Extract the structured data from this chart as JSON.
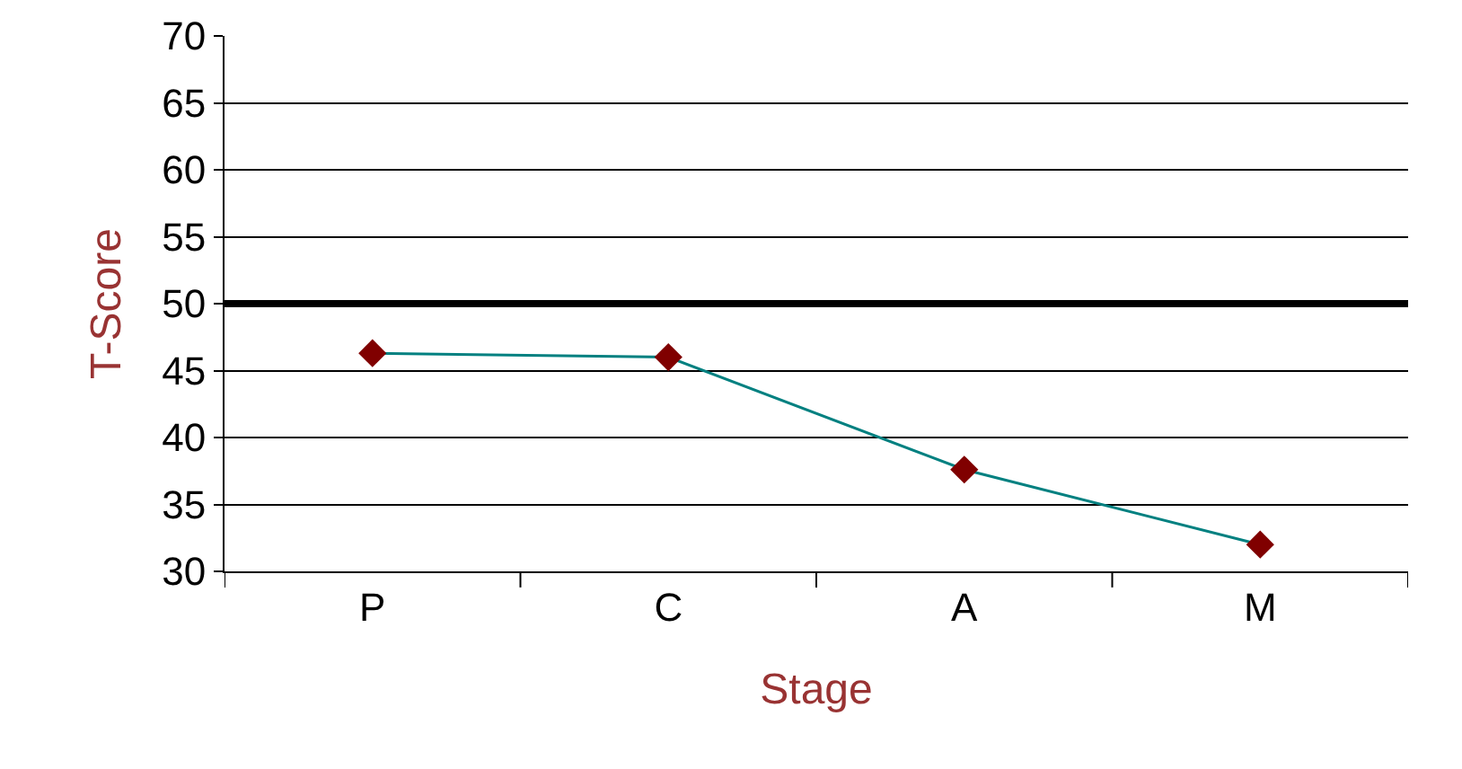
{
  "chart_data": {
    "type": "line",
    "xlabel": "Stage",
    "ylabel": "T-Score",
    "categories": [
      "P",
      "C",
      "A",
      "M"
    ],
    "series": [
      {
        "color": "#008080",
        "colors": [
          "#800000",
          "#800000",
          "#800000",
          "#800000"
        ],
        "values": [
          46.3,
          46.0,
          37.6,
          32.0
        ]
      }
    ],
    "ylim": [
      30,
      70
    ],
    "yticks": [
      30,
      35,
      40,
      45,
      50,
      55,
      60,
      65,
      70
    ],
    "ref_lines": [
      {
        "axis": "y",
        "value": 50,
        "color": "#000000"
      }
    ],
    "grid": "y",
    "marker": "diamond",
    "line_style": "solid"
  }
}
